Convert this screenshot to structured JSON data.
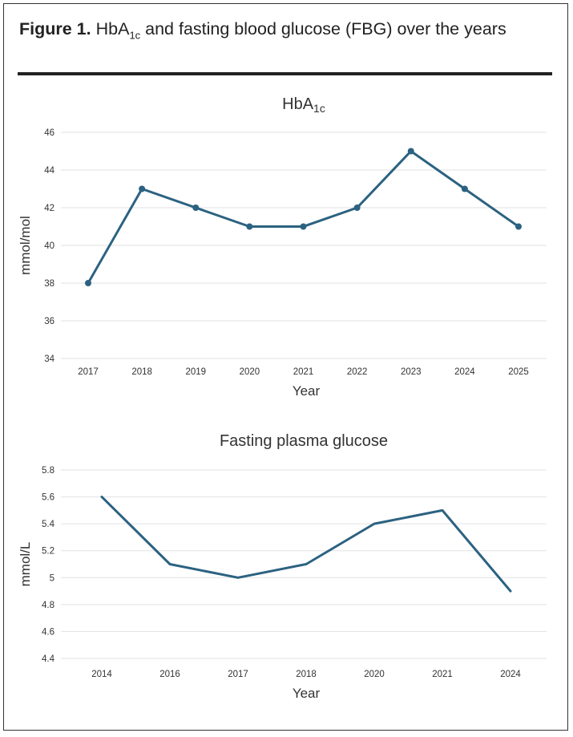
{
  "figure": {
    "label": "Figure 1.",
    "title_pre": "HbA",
    "title_sub": "1c",
    "title_post": " and fasting blood glucose (FBG) over the years"
  },
  "colors": {
    "line": "#2c6281",
    "grid": "#e2e2e2",
    "text": "#333333"
  },
  "chart_data": [
    {
      "type": "line",
      "title": "HbA1c",
      "title_parts": {
        "main": "HbA",
        "sub": "1c"
      },
      "xlabel": "Year",
      "ylabel": "mmol/mol",
      "categories": [
        "2017",
        "2018",
        "2019",
        "2020",
        "2021",
        "2022",
        "2023",
        "2024",
        "2025"
      ],
      "series": [
        {
          "values": [
            38,
            43,
            42,
            41,
            41,
            42,
            45,
            43,
            41
          ]
        }
      ],
      "markers": true,
      "ylim": [
        34,
        46
      ],
      "yticks": [
        "34",
        "36",
        "38",
        "40",
        "42",
        "44",
        "46"
      ],
      "grid": true
    },
    {
      "type": "line",
      "title": "Fasting plasma glucose",
      "xlabel": "Year",
      "ylabel": "mmol/L",
      "categories": [
        "2014",
        "2016",
        "2017",
        "2018",
        "2020",
        "2021",
        "2024"
      ],
      "series": [
        {
          "values": [
            5.6,
            5.1,
            5.0,
            5.1,
            5.4,
            5.5,
            4.9
          ]
        }
      ],
      "markers": false,
      "ylim": [
        4.4,
        5.8
      ],
      "yticks": [
        "4.4",
        "4.6",
        "4.8",
        "5",
        "5.2",
        "5.4",
        "5.6",
        "5.8"
      ],
      "grid": true
    }
  ]
}
